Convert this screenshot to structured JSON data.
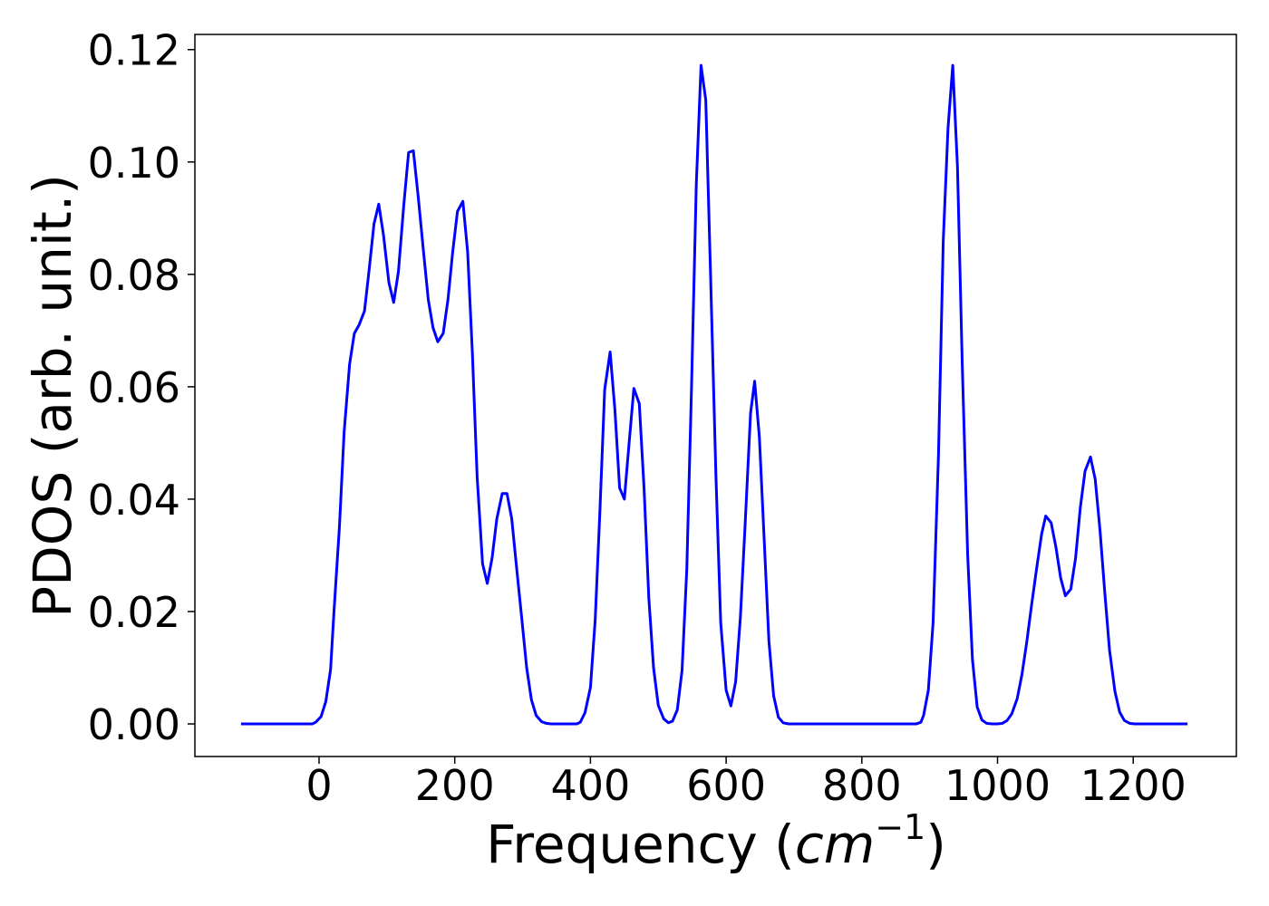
{
  "chart_data": {
    "type": "line",
    "xlabel": [
      "Frequency (",
      "cm",
      "−1",
      ")"
    ],
    "ylabel": "PDOS (arb. unit.)",
    "xlim": [
      -183,
      1352
    ],
    "ylim": [
      -0.0058,
      0.1227
    ],
    "xticks": [
      0,
      200,
      400,
      600,
      800,
      1000,
      1200
    ],
    "yticks": [
      {
        "value": 0,
        "label": "0.00"
      },
      0.02,
      0.04,
      0.06,
      0.08,
      {
        "value": 0.1,
        "label": "0.10"
      },
      0.12
    ],
    "series": [
      {
        "color": "#0000ff",
        "x": [
          -115,
          -10,
          -5,
          3,
          10,
          17,
          22,
          30,
          37,
          45,
          52,
          59,
          67,
          74,
          81,
          88,
          95,
          103,
          110,
          117,
          125,
          132,
          139,
          146,
          154,
          161,
          168,
          175,
          183,
          190,
          197,
          204,
          212,
          219,
          226,
          233,
          241,
          248,
          255,
          262,
          270,
          277,
          284,
          291,
          299,
          306,
          313,
          320,
          328,
          335,
          342,
          380,
          385,
          392,
          400,
          407,
          414,
          421,
          429,
          436,
          443,
          450,
          457,
          464,
          472,
          479,
          486,
          493,
          500,
          508,
          515,
          521,
          528,
          535,
          542,
          549,
          556,
          563,
          570,
          577,
          585,
          592,
          600,
          607,
          614,
          621,
          628,
          636,
          642,
          649,
          656,
          663,
          670,
          677,
          684,
          692,
          880,
          887,
          891,
          898,
          905,
          913,
          920,
          927,
          934,
          941,
          948,
          956,
          963,
          970,
          977,
          984,
          992,
          1000,
          1007,
          1014,
          1021,
          1029,
          1036,
          1043,
          1050,
          1058,
          1065,
          1071,
          1079,
          1086,
          1093,
          1100,
          1108,
          1115,
          1122,
          1129,
          1137,
          1144,
          1151,
          1158,
          1165,
          1173,
          1180,
          1187,
          1195,
          1202,
          1280
        ],
        "values": [
          0,
          0,
          0.0003,
          0.0013,
          0.004,
          0.0097,
          0.02,
          0.035,
          0.052,
          0.064,
          0.0695,
          0.071,
          0.0735,
          0.081,
          0.089,
          0.0925,
          0.087,
          0.0785,
          0.075,
          0.0805,
          0.0925,
          0.1017,
          0.102,
          0.094,
          0.084,
          0.0755,
          0.0705,
          0.068,
          0.0695,
          0.0755,
          0.084,
          0.0912,
          0.093,
          0.084,
          0.066,
          0.044,
          0.0285,
          0.025,
          0.0295,
          0.0365,
          0.041,
          0.041,
          0.0365,
          0.028,
          0.0185,
          0.01,
          0.0043,
          0.0015,
          0.0004,
          0.0001,
          0,
          0,
          0.0003,
          0.002,
          0.0065,
          0.0185,
          0.038,
          0.0595,
          0.0662,
          0.056,
          0.042,
          0.04,
          0.05,
          0.0597,
          0.057,
          0.042,
          0.0225,
          0.01,
          0.0033,
          0.0009,
          0.0002,
          0.0005,
          0.0025,
          0.0095,
          0.0275,
          0.06,
          0.096,
          0.1172,
          0.111,
          0.08,
          0.044,
          0.018,
          0.006,
          0.0032,
          0.0075,
          0.019,
          0.0355,
          0.0553,
          0.061,
          0.051,
          0.033,
          0.0148,
          0.005,
          0.0012,
          0.0002,
          0,
          0,
          0.0003,
          0.0015,
          0.006,
          0.018,
          0.048,
          0.086,
          0.106,
          0.1172,
          0.099,
          0.064,
          0.03,
          0.0115,
          0.003,
          0.0007,
          0.0001,
          0,
          0,
          0.0001,
          0.0006,
          0.0018,
          0.0045,
          0.0088,
          0.0145,
          0.021,
          0.028,
          0.0338,
          0.037,
          0.0358,
          0.0315,
          0.026,
          0.0228,
          0.024,
          0.0295,
          0.0385,
          0.045,
          0.0475,
          0.0435,
          0.0345,
          0.0235,
          0.0132,
          0.0058,
          0.0021,
          0.0006,
          0.0001,
          0,
          0
        ]
      }
    ]
  }
}
